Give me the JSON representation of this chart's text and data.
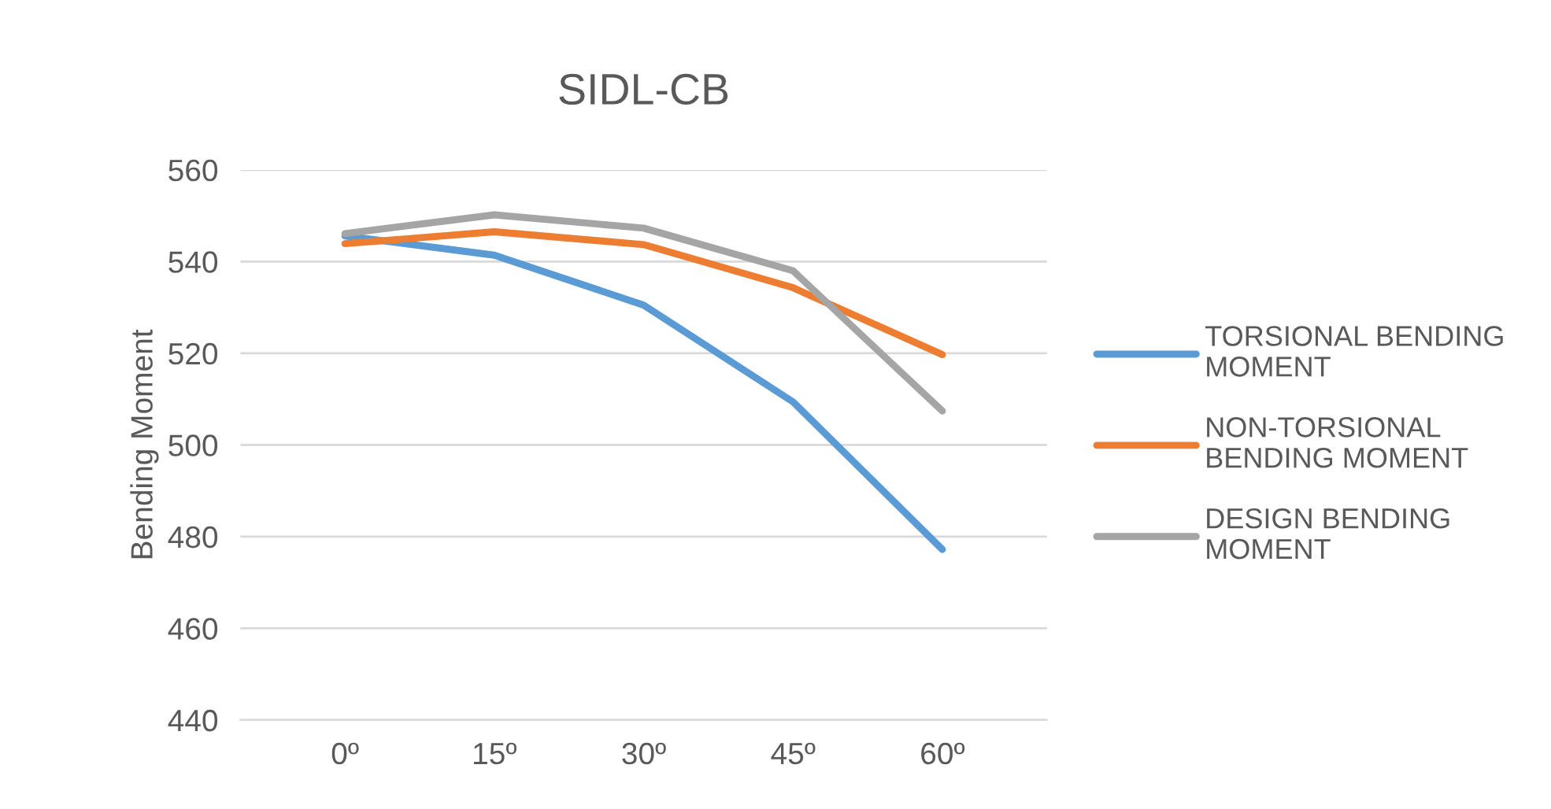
{
  "chart_data": {
    "type": "line",
    "title": "SIDL-CB",
    "ylabel": "Bending Moment",
    "categories": [
      "0º",
      "15º",
      "30º",
      "45º",
      "60º"
    ],
    "series": [
      {
        "name": "TORSIONAL BENDING\nMOMENT",
        "color": "#5b9bd5",
        "values": [
          545.6,
          541.4,
          530.5,
          509.4,
          477.2
        ]
      },
      {
        "name": "NON-TORSIONAL\nBENDING MOMENT",
        "color": "#ed7d31",
        "values": [
          543.9,
          546.5,
          543.7,
          534.3,
          519.7
        ]
      },
      {
        "name": "DESIGN BENDING\nMOMENT",
        "color": "#a5a5a5",
        "values": [
          546.1,
          550.2,
          547.3,
          538.0,
          507.4
        ]
      }
    ],
    "ylim": [
      440,
      560
    ],
    "yticks": [
      440,
      460,
      480,
      500,
      520,
      540,
      560
    ],
    "grid": "y",
    "legend": "right",
    "marker": "none",
    "line_style": "solid"
  }
}
